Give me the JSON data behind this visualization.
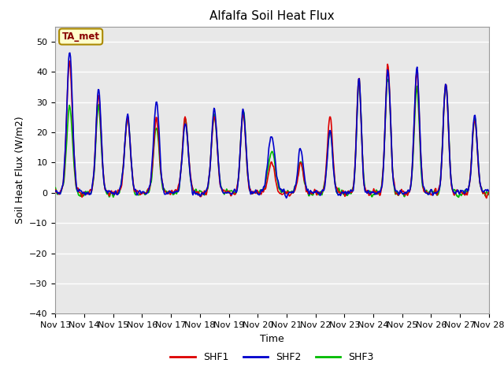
{
  "title": "Alfalfa Soil Heat Flux",
  "ylabel": "Soil Heat Flux (W/m2)",
  "xlabel": "Time",
  "ylim": [
    -40,
    55
  ],
  "yticks": [
    -40,
    -30,
    -20,
    -10,
    0,
    10,
    20,
    30,
    40,
    50
  ],
  "colors": {
    "SHF1": "#dd0000",
    "SHF2": "#0000cc",
    "SHF3": "#00bb00"
  },
  "legend_labels": [
    "SHF1",
    "SHF2",
    "SHF3"
  ],
  "xtick_labels": [
    "Nov 13",
    "Nov 14",
    "Nov 15",
    "Nov 16",
    "Nov 17",
    "Nov 18",
    "Nov 19",
    "Nov 20",
    "Nov 21",
    "Nov 22",
    "Nov 23",
    "Nov 24",
    "Nov 25",
    "Nov 26",
    "Nov 27",
    "Nov 28"
  ],
  "annotation_text": "TA_met",
  "annotation_fg": "#880000",
  "annotation_bg": "#ffffcc",
  "annotation_edge": "#aa8800",
  "plot_bg_color": "#e8e8e8",
  "grid_color": "#ffffff",
  "title_fontsize": 11,
  "axis_label_fontsize": 9,
  "tick_label_fontsize": 8,
  "legend_fontsize": 9
}
